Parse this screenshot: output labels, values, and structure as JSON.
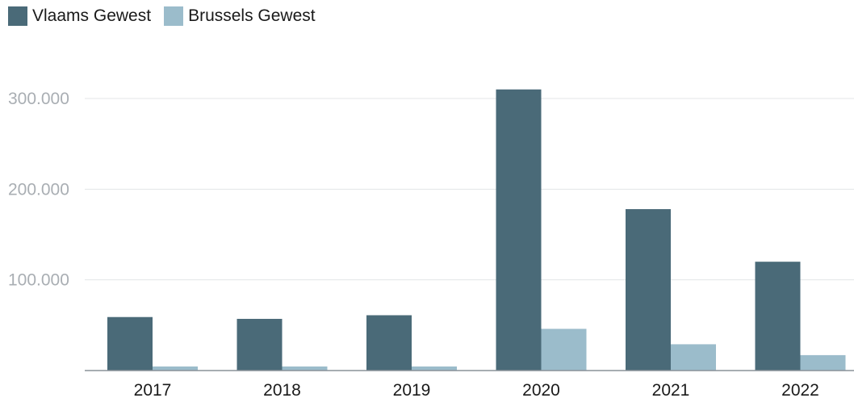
{
  "chart_data": {
    "type": "bar",
    "categories": [
      "2017",
      "2018",
      "2019",
      "2020",
      "2021",
      "2022"
    ],
    "series": [
      {
        "name": "Vlaams Gewest",
        "color": "#4a6a78",
        "values": [
          59000,
          57000,
          61000,
          310000,
          178000,
          120000
        ]
      },
      {
        "name": "Brussels Gewest",
        "color": "#9bbccb",
        "values": [
          4500,
          4500,
          4500,
          46000,
          29000,
          17000
        ]
      }
    ],
    "yticks": [
      {
        "value": 100000,
        "label": "100.000"
      },
      {
        "value": 200000,
        "label": "200.000"
      },
      {
        "value": 300000,
        "label": "300.000"
      }
    ],
    "ylim": [
      0,
      330000
    ],
    "grid": true,
    "legend_position": "top-left"
  }
}
